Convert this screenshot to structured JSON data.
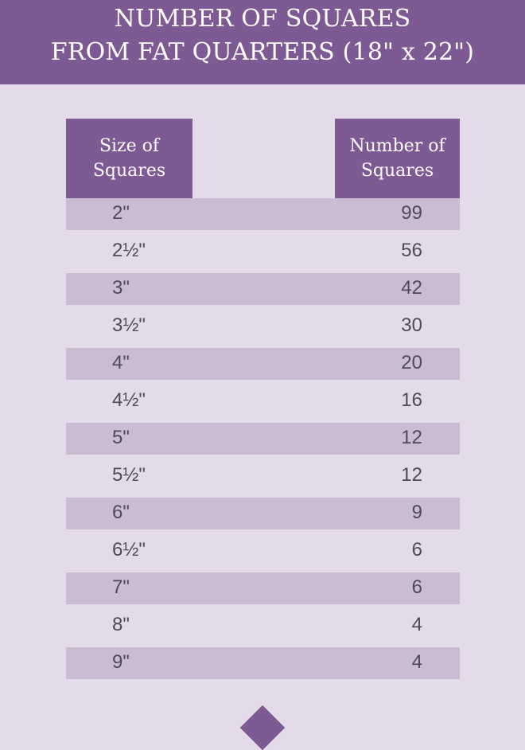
{
  "title": {
    "line1": "NUMBER OF SQUARES",
    "line2": "FROM FAT QUARTERS (18\" x 22\")"
  },
  "table": {
    "headers": {
      "size": [
        "Size of",
        "Squares"
      ],
      "count": [
        "Number of",
        "Squares"
      ]
    },
    "rows": [
      {
        "size": "2\"",
        "count": "99"
      },
      {
        "size": "2½\"",
        "count": "56"
      },
      {
        "size": "3\"",
        "count": "42"
      },
      {
        "size": "3½\"",
        "count": "30"
      },
      {
        "size": "4\"",
        "count": "20"
      },
      {
        "size": "4½\"",
        "count": "16"
      },
      {
        "size": "5\"",
        "count": "12"
      },
      {
        "size": "5½\"",
        "count": "12"
      },
      {
        "size": "6\"",
        "count": "9"
      },
      {
        "size": "6½\"",
        "count": "6"
      },
      {
        "size": "7\"",
        "count": "6"
      },
      {
        "size": "8\"",
        "count": "4"
      },
      {
        "size": "9\"",
        "count": "4"
      }
    ]
  },
  "colors": {
    "banner": "#7d5a93",
    "background": "#e3dbea",
    "row_shade": "#cbbbd3",
    "text": "#4f4a55"
  }
}
